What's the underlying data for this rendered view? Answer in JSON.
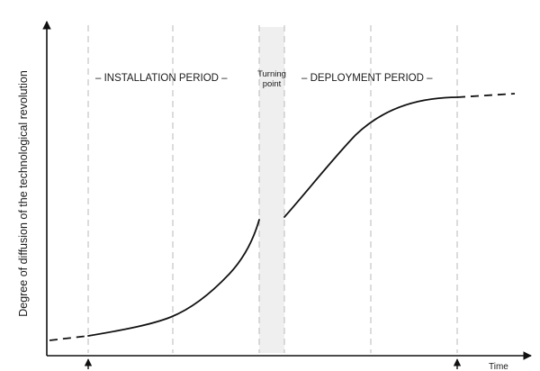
{
  "diagram": {
    "y_axis_label": "Degree of diffusion of the technological revolution",
    "x_axis_label": "Time",
    "installation_label": "– INSTALLATION PERIOD –",
    "turning_point_line1": "Turning",
    "turning_point_line2": "point",
    "deployment_label": "– DEPLOYMENT PERIOD –",
    "colors": {
      "curve": "#111111",
      "gridline": "#b8b8b8",
      "turning_band": "#e6e6e6"
    }
  }
}
